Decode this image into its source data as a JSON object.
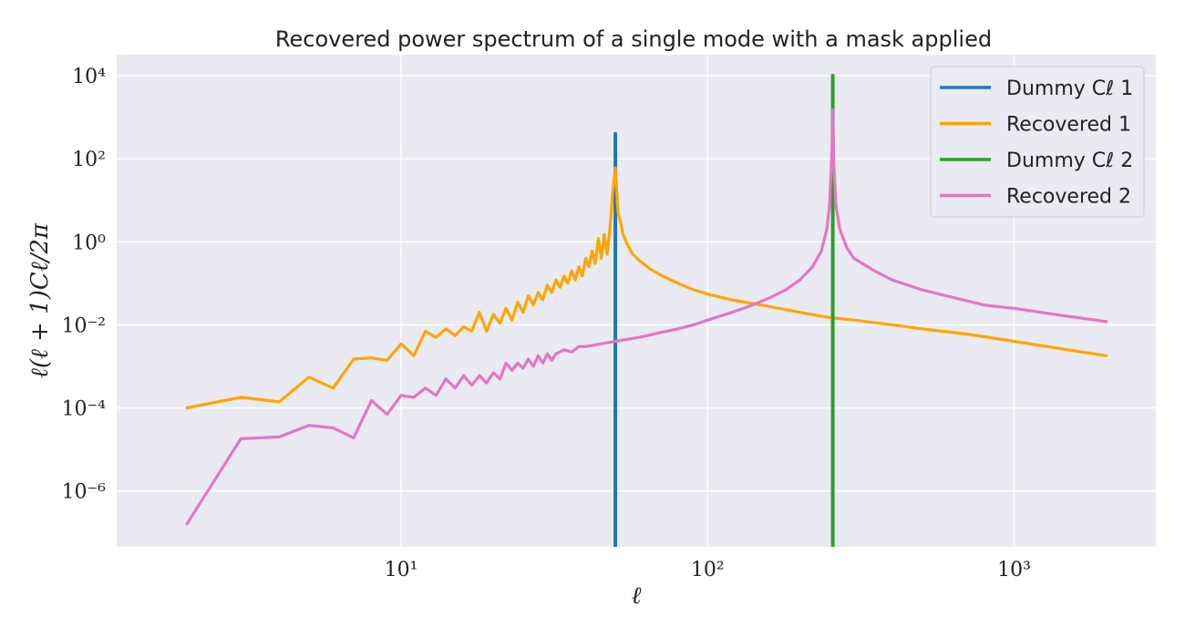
{
  "chart_data": {
    "type": "line",
    "title": "Recovered power spectrum of a single mode with a mask applied",
    "xlabel": "ℓ",
    "ylabel": "ℓ(ℓ + 1)Cℓ/2π",
    "x_scale": "log",
    "y_scale": "log",
    "xlim": [
      1.18,
      2900
    ],
    "ylim": [
      4.5e-08,
      32000.0
    ],
    "x_ticks": [
      {
        "value": 10,
        "label": "10¹"
      },
      {
        "value": 100,
        "label": "10²"
      },
      {
        "value": 1000,
        "label": "10³"
      }
    ],
    "y_ticks": [
      {
        "value": 1e-06,
        "label": "10⁻⁶"
      },
      {
        "value": 0.0001,
        "label": "10⁻⁴"
      },
      {
        "value": 0.01,
        "label": "10⁻²"
      },
      {
        "value": 1,
        "label": "10⁰"
      },
      {
        "value": 100,
        "label": "10²"
      },
      {
        "value": 10000,
        "label": "10⁴"
      }
    ],
    "grid": true,
    "background": "#eaeaf2",
    "legend_position": "top-right",
    "series": [
      {
        "name": "Dummy Cℓ 1",
        "color": "#1f77b4",
        "style": "vertical",
        "points": [
          [
            50,
            4.5e-08
          ],
          [
            50,
            400
          ]
        ]
      },
      {
        "name": "Recovered 1",
        "color": "#ffa500",
        "points": [
          [
            2,
            0.0001
          ],
          [
            3,
            0.00018
          ],
          [
            4,
            0.00014
          ],
          [
            5,
            0.00055
          ],
          [
            6,
            0.0003
          ],
          [
            7,
            0.0015
          ],
          [
            8,
            0.0016
          ],
          [
            9,
            0.0014
          ],
          [
            10,
            0.0035
          ],
          [
            11,
            0.0018
          ],
          [
            12,
            0.007
          ],
          [
            13,
            0.005
          ],
          [
            14,
            0.008
          ],
          [
            15,
            0.0055
          ],
          [
            16,
            0.009
          ],
          [
            17,
            0.007
          ],
          [
            18,
            0.02
          ],
          [
            19,
            0.007
          ],
          [
            20,
            0.018
          ],
          [
            21,
            0.011
          ],
          [
            22,
            0.025
          ],
          [
            23,
            0.013
          ],
          [
            24,
            0.035
          ],
          [
            25,
            0.02
          ],
          [
            26,
            0.05
          ],
          [
            27,
            0.03
          ],
          [
            28,
            0.06
          ],
          [
            29,
            0.04
          ],
          [
            30,
            0.09
          ],
          [
            31,
            0.06
          ],
          [
            32,
            0.12
          ],
          [
            33,
            0.08
          ],
          [
            34,
            0.15
          ],
          [
            35,
            0.1
          ],
          [
            36,
            0.2
          ],
          [
            37,
            0.12
          ],
          [
            38,
            0.25
          ],
          [
            39,
            0.15
          ],
          [
            40,
            0.4
          ],
          [
            41,
            0.25
          ],
          [
            42,
            0.6
          ],
          [
            43,
            0.3
          ],
          [
            44,
            1.2
          ],
          [
            45,
            0.4
          ],
          [
            46,
            1.5
          ],
          [
            47,
            0.5
          ],
          [
            48,
            2.0
          ],
          [
            49,
            15.0
          ],
          [
            50,
            60.0
          ],
          [
            51,
            5.0
          ],
          [
            52,
            3.0
          ],
          [
            53,
            1.5
          ],
          [
            55,
            0.8
          ],
          [
            57,
            0.5
          ],
          [
            60,
            0.35
          ],
          [
            65,
            0.22
          ],
          [
            70,
            0.16
          ],
          [
            80,
            0.1
          ],
          [
            90,
            0.07
          ],
          [
            100,
            0.055
          ],
          [
            120,
            0.04
          ],
          [
            150,
            0.03
          ],
          [
            200,
            0.02
          ],
          [
            250,
            0.015
          ],
          [
            300,
            0.013
          ],
          [
            400,
            0.01
          ],
          [
            500,
            0.008
          ],
          [
            700,
            0.006
          ],
          [
            1000,
            0.004
          ],
          [
            1500,
            0.0025
          ],
          [
            2000,
            0.0018
          ]
        ]
      },
      {
        "name": "Dummy Cℓ 2",
        "color": "#2ca02c",
        "style": "vertical",
        "points": [
          [
            256,
            4.5e-08
          ],
          [
            256,
            10000
          ]
        ]
      },
      {
        "name": "Recovered 2",
        "color": "#e377c2",
        "points": [
          [
            2,
            1.6e-07
          ],
          [
            3,
            1.8e-05
          ],
          [
            4,
            2e-05
          ],
          [
            5,
            3.8e-05
          ],
          [
            6,
            3.3e-05
          ],
          [
            7,
            1.9e-05
          ],
          [
            8,
            0.00015
          ],
          [
            9,
            7e-05
          ],
          [
            10,
            0.0002
          ],
          [
            11,
            0.00018
          ],
          [
            12,
            0.0003
          ],
          [
            13,
            0.0002
          ],
          [
            14,
            0.0005
          ],
          [
            15,
            0.0003
          ],
          [
            16,
            0.0006
          ],
          [
            17,
            0.00035
          ],
          [
            18,
            0.0006
          ],
          [
            19,
            0.0004
          ],
          [
            20,
            0.0007
          ],
          [
            21,
            0.0005
          ],
          [
            22,
            0.0012
          ],
          [
            23,
            0.0008
          ],
          [
            24,
            0.0012
          ],
          [
            25,
            0.0009
          ],
          [
            26,
            0.0015
          ],
          [
            27,
            0.001
          ],
          [
            28,
            0.0018
          ],
          [
            29,
            0.0012
          ],
          [
            30,
            0.002
          ],
          [
            31,
            0.0014
          ],
          [
            32,
            0.002
          ],
          [
            34,
            0.0025
          ],
          [
            36,
            0.0022
          ],
          [
            38,
            0.003
          ],
          [
            40,
            0.003
          ],
          [
            45,
            0.0035
          ],
          [
            50,
            0.004
          ],
          [
            55,
            0.0045
          ],
          [
            60,
            0.005
          ],
          [
            70,
            0.0065
          ],
          [
            80,
            0.008
          ],
          [
            90,
            0.01
          ],
          [
            100,
            0.013
          ],
          [
            120,
            0.02
          ],
          [
            140,
            0.03
          ],
          [
            160,
            0.045
          ],
          [
            180,
            0.07
          ],
          [
            200,
            0.12
          ],
          [
            220,
            0.25
          ],
          [
            235,
            0.6
          ],
          [
            245,
            2.0
          ],
          [
            250,
            8.0
          ],
          [
            254,
            100.0
          ],
          [
            256,
            1500.0
          ],
          [
            258,
            80.0
          ],
          [
            262,
            8.0
          ],
          [
            270,
            2.0
          ],
          [
            285,
            0.7
          ],
          [
            300,
            0.4
          ],
          [
            350,
            0.2
          ],
          [
            400,
            0.12
          ],
          [
            500,
            0.07
          ],
          [
            600,
            0.05
          ],
          [
            800,
            0.03
          ],
          [
            1000,
            0.025
          ],
          [
            1500,
            0.016
          ],
          [
            2000,
            0.012
          ]
        ]
      }
    ]
  }
}
